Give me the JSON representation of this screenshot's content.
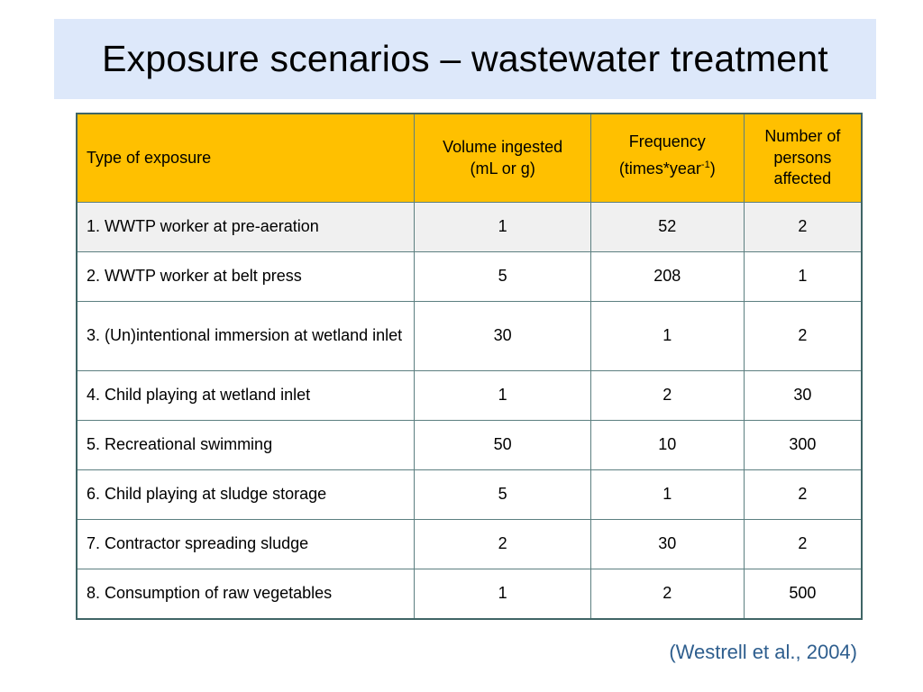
{
  "slide": {
    "title": "Exposure scenarios – wastewater treatment",
    "citation": "(Westrell et al., 2004)"
  },
  "table": {
    "headers": {
      "type": "Type of exposure",
      "volume_line1": "Volume ingested",
      "volume_line2": "(mL or g)",
      "frequency_line1": "Frequency",
      "frequency_line2_pre": "(times*year",
      "frequency_sup": "-1",
      "frequency_line2_post": ")",
      "persons_line1": "Number of",
      "persons_line2": "persons",
      "persons_line3": "affected"
    },
    "rows": [
      {
        "type": "1. WWTP worker at pre-aeration",
        "volume": "1",
        "frequency": "52",
        "persons": "2"
      },
      {
        "type": "2. WWTP worker at belt press",
        "volume": "5",
        "frequency": "208",
        "persons": "1"
      },
      {
        "type": "3. (Un)intentional immersion at wetland inlet",
        "volume": "30",
        "frequency": "1",
        "persons": "2"
      },
      {
        "type": "4. Child playing at wetland inlet",
        "volume": "1",
        "frequency": "2",
        "persons": "30"
      },
      {
        "type": "5. Recreational swimming",
        "volume": "50",
        "frequency": "10",
        "persons": "300"
      },
      {
        "type": "6. Child playing at sludge storage",
        "volume": "5",
        "frequency": "1",
        "persons": "2"
      },
      {
        "type": "7. Contractor spreading sludge",
        "volume": "2",
        "frequency": "30",
        "persons": "2"
      },
      {
        "type": "8. Consumption of raw vegetables",
        "volume": "1",
        "frequency": "2",
        "persons": "500"
      }
    ]
  },
  "colors": {
    "title_band": "#dde8fa",
    "header_fill": "#ffc000",
    "first_row_fill": "#f0f0f0",
    "table_border": "#3f6566",
    "citation_text": "#2e5e8e"
  }
}
